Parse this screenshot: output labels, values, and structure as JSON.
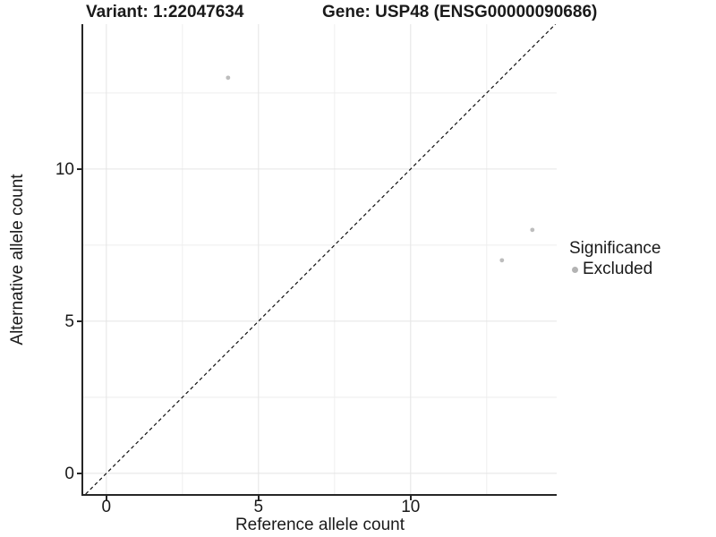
{
  "header": {
    "variant_title": "Variant: 1:22047634",
    "gene_title": "Gene: USP48 (ENSG00000090686)"
  },
  "chart_data": {
    "type": "scatter",
    "titles": {
      "left": "Variant: 1:22047634",
      "right": "Gene: USP48 (ENSG00000090686)"
    },
    "xlabel": "Reference allele count",
    "ylabel": "Alternative allele count",
    "xlim": [
      -0.76,
      14.8
    ],
    "ylim": [
      -0.68,
      14.76
    ],
    "x_ticks": {
      "major": [
        0,
        5,
        10
      ],
      "minor": [
        2.5,
        7.5,
        12.5
      ]
    },
    "y_ticks": {
      "major": [
        0,
        5,
        10
      ],
      "minor": [
        2.5,
        7.5,
        12.5
      ]
    },
    "grid": true,
    "identity_line": {
      "type": "abline",
      "slope": 1,
      "intercept": 0,
      "style": "dashed"
    },
    "series": [
      {
        "name": "Excluded",
        "color": "#bdbdbd",
        "points": [
          {
            "x": 4,
            "y": 13
          },
          {
            "x": 13,
            "y": 7
          },
          {
            "x": 14,
            "y": 8
          }
        ]
      }
    ],
    "colors": {
      "grid_major": "#e4e4e4",
      "grid_minor": "#eeeeee",
      "axis": "#262626",
      "point": "#bdbdbd",
      "identity_line": "#111111",
      "text": "#1a1a1a",
      "background": "#ffffff"
    }
  },
  "legend": {
    "title": "Significance",
    "position": "right",
    "items": [
      {
        "label": "Excluded",
        "color": "#b3b3b3"
      }
    ]
  }
}
